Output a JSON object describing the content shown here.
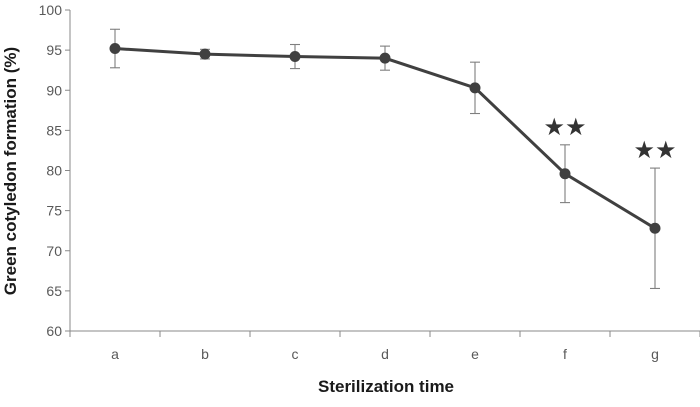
{
  "chart_data": {
    "type": "line",
    "title": "",
    "xlabel": "Sterilization time",
    "ylabel": "Green cotyledon formation (%)",
    "ylim": [
      60,
      100
    ],
    "yticks": [
      60,
      65,
      70,
      75,
      80,
      85,
      90,
      95,
      100
    ],
    "grid": false,
    "legend": "none",
    "categories": [
      "a",
      "b",
      "c",
      "d",
      "e",
      "f",
      "g"
    ],
    "series": [
      {
        "name": "Green cotyledon formation",
        "values": [
          95.2,
          94.5,
          94.2,
          94.0,
          90.3,
          79.6,
          72.8
        ],
        "errors": [
          2.4,
          0.6,
          1.5,
          1.5,
          3.2,
          3.6,
          7.5
        ],
        "color": "#404040"
      }
    ],
    "annotations": [
      {
        "category": "f",
        "text": "★★"
      },
      {
        "category": "g",
        "text": "★★"
      }
    ]
  }
}
